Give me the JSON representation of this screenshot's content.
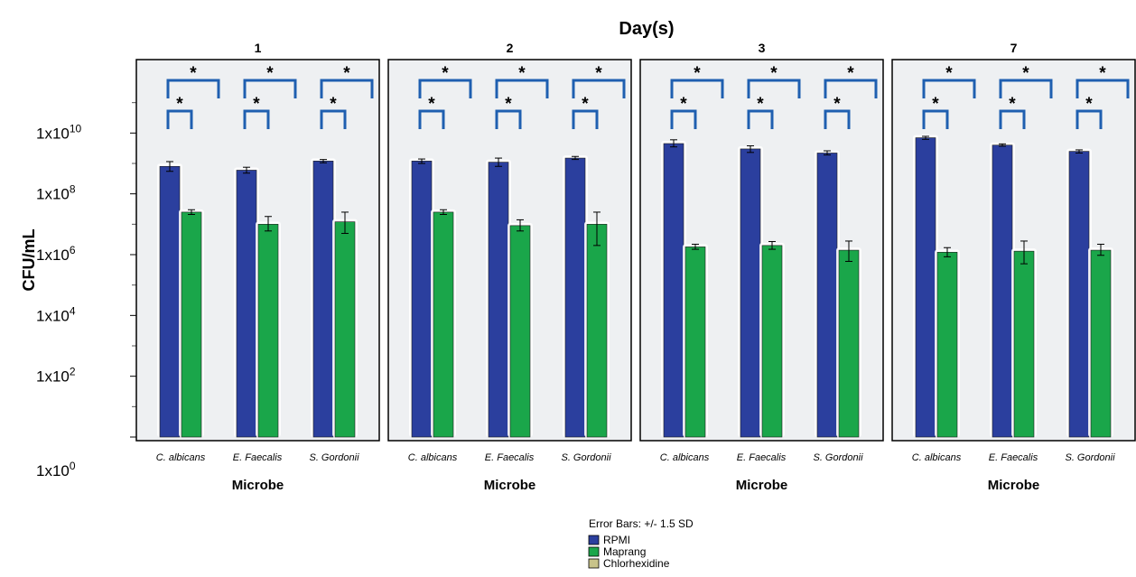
{
  "chart_data": {
    "type": "bar",
    "title": "Day(s)",
    "xlabel": "Microbe",
    "ylabel": "CFU/mL",
    "yscale": "log",
    "ylim": [
      1,
      1000000000000.0
    ],
    "yticks": [
      {
        "value": 1,
        "label_base": "1x10",
        "label_exp": "0"
      },
      {
        "value": 100,
        "label_base": "1x10",
        "label_exp": "2"
      },
      {
        "value": 10000,
        "label_base": "1x10",
        "label_exp": "4"
      },
      {
        "value": 1000000,
        "label_base": "1x10",
        "label_exp": "6"
      },
      {
        "value": 100000000,
        "label_base": "1x10",
        "label_exp": "8"
      },
      {
        "value": 10000000000,
        "label_base": "1x10",
        "label_exp": "10"
      }
    ],
    "categories": [
      "C. albicans",
      "E. Faecalis",
      "S. Gordonii"
    ],
    "grid": false,
    "legend_position": "bottom-center",
    "error_bar_note": "Error Bars: +/- 1.5 SD",
    "series_colors": {
      "RPMI": "#2b3f9e",
      "Maprang": "#1aa64a",
      "Chlorhexidine": "#c8c38a"
    },
    "legend": [
      "RPMI",
      "Maprang",
      "Chlorhexidine"
    ],
    "significance_mark": "*",
    "panels": [
      {
        "day": "1",
        "series": [
          {
            "name": "RPMI",
            "values": [
              800000000.0,
              600000000.0,
              1200000000.0
            ],
            "err_low": [
              550000000.0,
              480000000.0,
              1050000000.0
            ],
            "err_high": [
              1150000000.0,
              750000000.0,
              1350000000.0
            ]
          },
          {
            "name": "Maprang",
            "values": [
              25000000.0,
              10000000.0,
              12000000.0
            ],
            "err_low": [
              21000000.0,
              6000000.0,
              5000000.0
            ],
            "err_high": [
              30000000.0,
              18000000.0,
              25000000.0
            ]
          },
          {
            "name": "Chlorhexidine",
            "values": [
              null,
              null,
              null
            ]
          }
        ]
      },
      {
        "day": "2",
        "series": [
          {
            "name": "RPMI",
            "values": [
              1200000000.0,
              1100000000.0,
              1500000000.0
            ],
            "err_low": [
              1000000000.0,
              800000000.0,
              1350000000.0
            ],
            "err_high": [
              1400000000.0,
              1500000000.0,
              1700000000.0
            ]
          },
          {
            "name": "Maprang",
            "values": [
              25000000.0,
              9000000.0,
              10000000.0
            ],
            "err_low": [
              21000000.0,
              6000000.0,
              2000000.0
            ],
            "err_high": [
              30000000.0,
              14000000.0,
              25000000.0
            ]
          },
          {
            "name": "Chlorhexidine",
            "values": [
              null,
              null,
              null
            ]
          }
        ]
      },
      {
        "day": "3",
        "series": [
          {
            "name": "RPMI",
            "values": [
              4500000000.0,
              3000000000.0,
              2200000000.0
            ],
            "err_low": [
              3500000000.0,
              2300000000.0,
              1900000000.0
            ],
            "err_high": [
              6000000000.0,
              3800000000.0,
              2600000000.0
            ]
          },
          {
            "name": "Maprang",
            "values": [
              1800000.0,
              2000000.0,
              1400000.0
            ],
            "err_low": [
              1500000.0,
              1500000.0,
              600000.0
            ],
            "err_high": [
              2200000.0,
              2700000.0,
              2800000.0
            ]
          },
          {
            "name": "Chlorhexidine",
            "values": [
              null,
              null,
              null
            ]
          }
        ]
      },
      {
        "day": "7",
        "series": [
          {
            "name": "RPMI",
            "values": [
              7000000000.0,
              4000000000.0,
              2500000000.0
            ],
            "err_low": [
              6200000000.0,
              3700000000.0,
              2200000000.0
            ],
            "err_high": [
              7800000000.0,
              4400000000.0,
              2800000000.0
            ]
          },
          {
            "name": "Maprang",
            "values": [
              1200000.0,
              1300000.0,
              1400000.0
            ],
            "err_low": [
              850000.0,
              500000.0,
              950000.0
            ],
            "err_high": [
              1700000.0,
              2800000.0,
              2200000.0
            ]
          },
          {
            "name": "Chlorhexidine",
            "values": [
              null,
              null,
              null
            ]
          }
        ]
      }
    ]
  }
}
